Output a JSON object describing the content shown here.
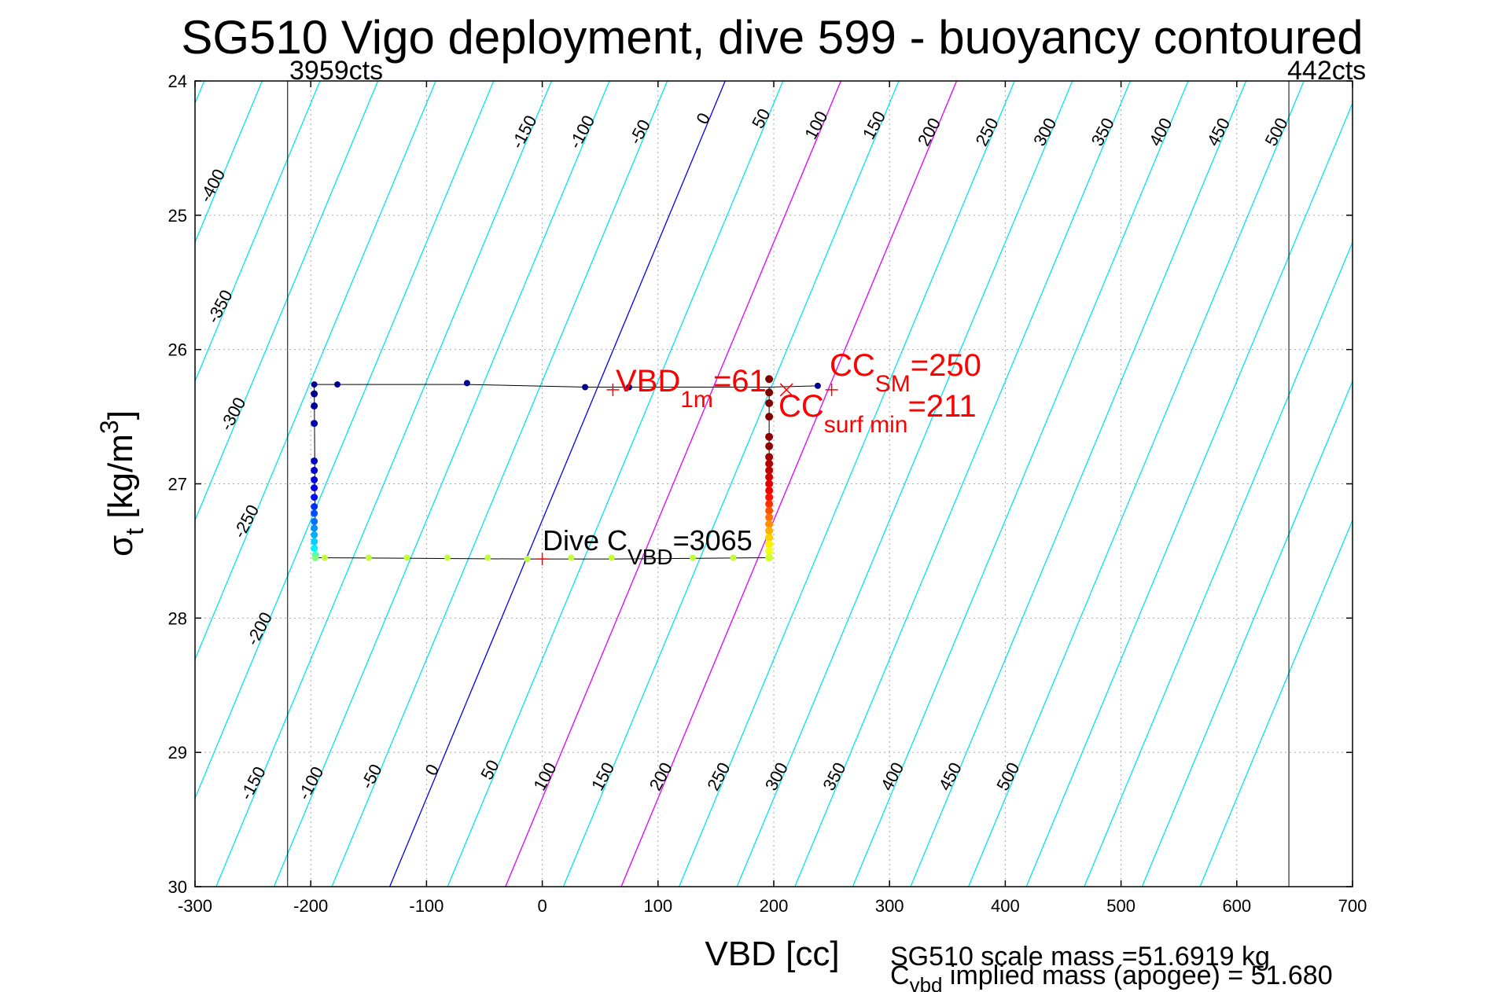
{
  "chart_data": {
    "type": "scatter",
    "title": "SG510 Vigo deployment, dive 599 - buoyancy contoured",
    "xlabel": "VBD [cc]",
    "ylabel_main": "σ",
    "ylabel_sub": "t",
    "ylabel_rest": " [kg/m",
    "ylabel_sup": "3",
    "ylabel_end": "]",
    "xlim": [
      -300,
      700
    ],
    "ylim": [
      24,
      30
    ],
    "y_reversed": true,
    "grid": true,
    "xticks": [
      -300,
      -200,
      -100,
      0,
      100,
      200,
      300,
      400,
      500,
      600,
      700
    ],
    "yticks": [
      24,
      25,
      26,
      27,
      28,
      29,
      30
    ],
    "xtick_labels": [
      "-300",
      "-200",
      "-100",
      "0",
      "100",
      "200",
      "300",
      "400",
      "500",
      "600",
      "700"
    ],
    "ytick_labels": [
      "24",
      "25",
      "26",
      "27",
      "28",
      "29",
      "30"
    ],
    "vbd_limits": [
      {
        "x": -220,
        "label": "3959cts"
      },
      {
        "x": 645,
        "label": "442cts"
      }
    ],
    "contours": {
      "levels": [
        -400,
        -350,
        -300,
        -250,
        -200,
        -150,
        -100,
        -50,
        0,
        50,
        100,
        150,
        200,
        250,
        300,
        350,
        400,
        450,
        500
      ],
      "slope_cc_per_sigma": 60,
      "base_x_at_sigma_24": 158,
      "level_spacing_cc": 50,
      "upper_labels": [
        {
          "text": "-400",
          "level": -400,
          "y": 24.8
        },
        {
          "text": "-350",
          "level": -350,
          "y": 25.7
        },
        {
          "text": "-300",
          "level": -300,
          "y": 26.5
        },
        {
          "text": "-250",
          "level": -250,
          "y": 27.3
        },
        {
          "text": "-200",
          "level": -200,
          "y": 28.1
        },
        {
          "text": "-150",
          "level": -150,
          "y": 24.4
        },
        {
          "text": "-100",
          "level": -100,
          "y": 24.4
        },
        {
          "text": "-50",
          "level": -50,
          "y": 24.4
        },
        {
          "text": "0",
          "level": 0,
          "y": 24.3
        },
        {
          "text": "50",
          "level": 50,
          "y": 24.3
        },
        {
          "text": "100",
          "level": 100,
          "y": 24.35
        },
        {
          "text": "150",
          "level": 150,
          "y": 24.35
        },
        {
          "text": "200",
          "level": 200,
          "y": 24.4
        },
        {
          "text": "250",
          "level": 250,
          "y": 24.4
        },
        {
          "text": "300",
          "level": 300,
          "y": 24.4
        },
        {
          "text": "350",
          "level": 350,
          "y": 24.4
        },
        {
          "text": "400",
          "level": 400,
          "y": 24.4
        },
        {
          "text": "450",
          "level": 450,
          "y": 24.4
        },
        {
          "text": "500",
          "level": 500,
          "y": 24.4
        }
      ],
      "lower_labels": [
        {
          "text": "-150",
          "level": -150,
          "y": 29.25
        },
        {
          "text": "-100",
          "level": -100,
          "y": 29.25
        },
        {
          "text": "-50",
          "level": -50,
          "y": 29.2
        },
        {
          "text": "0",
          "level": 0,
          "y": 29.15
        },
        {
          "text": "50",
          "level": 50,
          "y": 29.15
        },
        {
          "text": "100",
          "level": 100,
          "y": 29.2
        },
        {
          "text": "150",
          "level": 150,
          "y": 29.2
        },
        {
          "text": "200",
          "level": 200,
          "y": 29.2
        },
        {
          "text": "250",
          "level": 250,
          "y": 29.2
        },
        {
          "text": "300",
          "level": 300,
          "y": 29.2
        },
        {
          "text": "350",
          "level": 350,
          "y": 29.2
        },
        {
          "text": "400",
          "level": 400,
          "y": 29.2
        },
        {
          "text": "450",
          "level": 450,
          "y": 29.2
        },
        {
          "text": "500",
          "level": 500,
          "y": 29.2
        }
      ],
      "neutral_level": 0,
      "magenta_lines": [
        {
          "x_top": 258
        },
        {
          "x_top": 358
        }
      ]
    },
    "trajectory": [
      [
        -197,
        26.26
      ],
      [
        -178,
        26.26
      ],
      [
        -65,
        26.26
      ],
      [
        38,
        26.28
      ],
      [
        75,
        26.28
      ],
      [
        195,
        26.28
      ],
      [
        240,
        26.27
      ]
    ],
    "dive_path_left": [
      [
        -197,
        26.26
      ],
      [
        -196,
        27.55
      ]
    ],
    "dive_path_right": [
      [
        196,
        26.28
      ],
      [
        196,
        27.55
      ]
    ],
    "dive_path_bottom": [
      [
        -196,
        27.55
      ],
      [
        -12,
        27.56
      ],
      [
        63,
        27.56
      ],
      [
        196,
        27.55
      ]
    ],
    "points_top": [
      {
        "x": -197,
        "y": 26.26,
        "c": "#00008f"
      },
      {
        "x": -177,
        "y": 26.26,
        "c": "#00008f"
      },
      {
        "x": -65,
        "y": 26.25,
        "c": "#00008f"
      },
      {
        "x": 37,
        "y": 26.28,
        "c": "#00008f"
      },
      {
        "x": 75,
        "y": 26.28,
        "c": "#00008f"
      },
      {
        "x": 238,
        "y": 26.27,
        "c": "#00008f"
      }
    ],
    "points_left": [
      {
        "x": -197,
        "y": 26.33,
        "c": "#00008f"
      },
      {
        "x": -197,
        "y": 26.42,
        "c": "#00009f"
      },
      {
        "x": -197,
        "y": 26.55,
        "c": "#0000af"
      },
      {
        "x": -197,
        "y": 26.83,
        "c": "#0000bf"
      },
      {
        "x": -197,
        "y": 26.9,
        "c": "#0000cf"
      },
      {
        "x": -197,
        "y": 26.97,
        "c": "#0000df"
      },
      {
        "x": -197,
        "y": 27.03,
        "c": "#0000ef"
      },
      {
        "x": -197,
        "y": 27.1,
        "c": "#0010ff"
      },
      {
        "x": -197,
        "y": 27.17,
        "c": "#0030ff"
      },
      {
        "x": -197,
        "y": 27.22,
        "c": "#0050ff"
      },
      {
        "x": -197,
        "y": 27.28,
        "c": "#0070ff"
      },
      {
        "x": -197,
        "y": 27.33,
        "c": "#0090ff"
      },
      {
        "x": -197,
        "y": 27.38,
        "c": "#00b0ff"
      },
      {
        "x": -197,
        "y": 27.43,
        "c": "#00d0ff"
      },
      {
        "x": -197,
        "y": 27.48,
        "c": "#00f0ff"
      },
      {
        "x": -196,
        "y": 27.53,
        "c": "#40ffc0"
      },
      {
        "x": -196,
        "y": 27.55,
        "c": "#80ff80"
      }
    ],
    "points_bottom": [
      {
        "x": -188,
        "y": 27.55,
        "c": "#c0ff40"
      },
      {
        "x": -150,
        "y": 27.55,
        "c": "#c0ff40"
      },
      {
        "x": -117,
        "y": 27.55,
        "c": "#c0ff40"
      },
      {
        "x": -82,
        "y": 27.55,
        "c": "#c0ff40"
      },
      {
        "x": -47,
        "y": 27.55,
        "c": "#c0ff40"
      },
      {
        "x": -13,
        "y": 27.56,
        "c": "#c0ff40"
      },
      {
        "x": 25,
        "y": 27.55,
        "c": "#c0ff40"
      },
      {
        "x": 60,
        "y": 27.55,
        "c": "#c0ff40"
      },
      {
        "x": 130,
        "y": 27.55,
        "c": "#c0ff40"
      },
      {
        "x": 165,
        "y": 27.55,
        "c": "#c0ff40"
      }
    ],
    "points_right": [
      {
        "x": 196,
        "y": 26.22,
        "c": "#800000"
      },
      {
        "x": 196,
        "y": 26.32,
        "c": "#800000"
      },
      {
        "x": 196,
        "y": 26.4,
        "c": "#800000"
      },
      {
        "x": 196,
        "y": 26.5,
        "c": "#800000"
      },
      {
        "x": 196,
        "y": 26.65,
        "c": "#900000"
      },
      {
        "x": 196,
        "y": 26.72,
        "c": "#900000"
      },
      {
        "x": 196,
        "y": 26.8,
        "c": "#a00000"
      },
      {
        "x": 196,
        "y": 26.85,
        "c": "#b00000"
      },
      {
        "x": 196,
        "y": 26.9,
        "c": "#c00000"
      },
      {
        "x": 196,
        "y": 26.95,
        "c": "#d00000"
      },
      {
        "x": 196,
        "y": 27.0,
        "c": "#e00000"
      },
      {
        "x": 196,
        "y": 27.05,
        "c": "#f00000"
      },
      {
        "x": 196,
        "y": 27.1,
        "c": "#ff1000"
      },
      {
        "x": 196,
        "y": 27.15,
        "c": "#ff3000"
      },
      {
        "x": 196,
        "y": 27.2,
        "c": "#ff5000"
      },
      {
        "x": 196,
        "y": 27.25,
        "c": "#ff7000"
      },
      {
        "x": 196,
        "y": 27.3,
        "c": "#ff9000"
      },
      {
        "x": 196,
        "y": 27.35,
        "c": "#ffb000"
      },
      {
        "x": 196,
        "y": 27.4,
        "c": "#ffd000"
      },
      {
        "x": 196,
        "y": 27.45,
        "c": "#fff000"
      },
      {
        "x": 196,
        "y": 27.5,
        "c": "#f0ff10"
      },
      {
        "x": 196,
        "y": 27.55,
        "c": "#d0ff30"
      }
    ],
    "markers": [
      {
        "kind": "plus",
        "x": 61,
        "y": 26.3,
        "c": "#ff0000"
      },
      {
        "kind": "plus",
        "x": 250,
        "y": 26.3,
        "c": "#ff0000"
      },
      {
        "kind": "x",
        "x": 211,
        "y": 26.3,
        "c": "#ff0000"
      },
      {
        "kind": "plus",
        "x": 0,
        "y": 27.56,
        "c": "#ff0000"
      }
    ],
    "annotations": {
      "vbd_1m": {
        "main": "VBD",
        "sub": "1m",
        "rest": "=61"
      },
      "cc_sm": {
        "main": "CC",
        "sub": "SM",
        "rest": "=250"
      },
      "cc_surf_min": {
        "main": "CC",
        "sub": "surf min",
        "rest": "=211"
      },
      "dive_cvbd": {
        "main": "Dive C",
        "sub": "VBD",
        "rest": "=3065"
      }
    },
    "footer": {
      "line1": "SG510 scale mass =51.6919 kg",
      "line2_main": "C",
      "line2_sub": "vbd",
      "line2_rest": " implied mass (apogee) = 51.680"
    },
    "colors": {
      "contour": "#00e5ee",
      "neutral": "#0000ff",
      "magenta": "#ff00ff",
      "annotation": "#ff0000",
      "grid": "#aaaaaa",
      "path": "#000000"
    }
  }
}
